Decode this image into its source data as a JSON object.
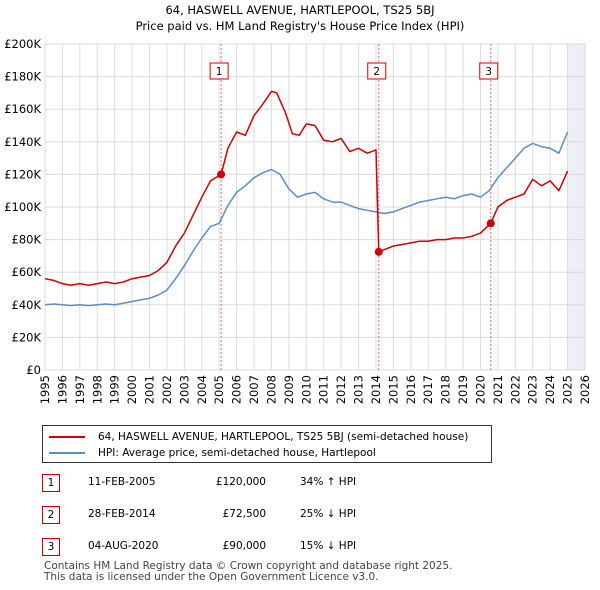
{
  "chart_data": {
    "type": "line",
    "title": "64, HASWELL AVENUE, HARTLEPOOL, TS25 5BJ",
    "subtitle": "Price paid vs. HM Land Registry's House Price Index (HPI)",
    "xlabel": "",
    "ylabel": "",
    "xlim": [
      1995,
      2026
    ],
    "ylim": [
      0,
      200000
    ],
    "x_ticks": [
      1995,
      1996,
      1997,
      1998,
      1999,
      2000,
      2001,
      2002,
      2003,
      2004,
      2005,
      2006,
      2007,
      2008,
      2009,
      2010,
      2011,
      2012,
      2013,
      2014,
      2015,
      2016,
      2017,
      2018,
      2019,
      2020,
      2021,
      2022,
      2023,
      2024,
      2025,
      2026
    ],
    "x_tick_labels": [
      "1995",
      "1996",
      "1997",
      "1998",
      "1999",
      "2000",
      "2001",
      "2002",
      "2003",
      "2004",
      "2005",
      "2006",
      "2007",
      "2008",
      "2009",
      "2010",
      "2011",
      "2012",
      "2013",
      "2014",
      "2015",
      "2016",
      "2017",
      "2018",
      "2019",
      "2020",
      "2021",
      "2022",
      "2023",
      "2024",
      "2025",
      "2026"
    ],
    "y_ticks": [
      0,
      20000,
      40000,
      60000,
      80000,
      100000,
      120000,
      140000,
      160000,
      180000,
      200000
    ],
    "y_tick_labels": [
      "£0",
      "£20K",
      "£40K",
      "£60K",
      "£80K",
      "£100K",
      "£120K",
      "£140K",
      "£160K",
      "£180K",
      "£200K"
    ],
    "grid": true,
    "shaded_future_from": 2025.0,
    "series": [
      {
        "name": "64, HASWELL AVENUE, HARTLEPOOL, TS25 5BJ (semi-detached house)",
        "color": "#cc0000",
        "x": [
          1995.0,
          1995.5,
          1996.0,
          1996.5,
          1997.0,
          1997.5,
          1998.0,
          1998.5,
          1999.0,
          1999.5,
          2000.0,
          2000.5,
          2001.0,
          2001.5,
          2002.0,
          2002.5,
          2003.0,
          2003.5,
          2004.0,
          2004.5,
          2005.11,
          2005.5,
          2006.0,
          2006.5,
          2007.0,
          2007.5,
          2008.0,
          2008.3,
          2008.8,
          2009.2,
          2009.6,
          2010.0,
          2010.5,
          2011.0,
          2011.5,
          2012.0,
          2012.5,
          2013.0,
          2013.5,
          2014.0,
          2014.16,
          2014.5,
          2015.0,
          2015.5,
          2016.0,
          2016.5,
          2017.0,
          2017.5,
          2018.0,
          2018.5,
          2019.0,
          2019.5,
          2020.0,
          2020.59,
          2021.0,
          2021.5,
          2022.0,
          2022.5,
          2023.0,
          2023.5,
          2024.0,
          2024.5,
          2025.0
        ],
        "values": [
          56000,
          55000,
          53000,
          52000,
          53000,
          52000,
          53000,
          54000,
          53000,
          54000,
          56000,
          57000,
          58000,
          61000,
          66000,
          76000,
          84000,
          95000,
          106000,
          116000,
          120000,
          136000,
          146000,
          144000,
          156000,
          163000,
          171000,
          170000,
          158000,
          145000,
          144000,
          151000,
          150000,
          141000,
          140000,
          142000,
          134000,
          136000,
          133000,
          135000,
          72500,
          74000,
          76000,
          77000,
          78000,
          79000,
          79000,
          80000,
          80000,
          81000,
          81000,
          82000,
          84000,
          90000,
          100000,
          104000,
          106000,
          108000,
          117000,
          113000,
          116000,
          110000,
          122000
        ]
      },
      {
        "name": "HPI: Average price, semi-detached house, Hartlepool",
        "color": "#5b8ec9",
        "x": [
          1995.0,
          1995.5,
          1996.0,
          1996.5,
          1997.0,
          1997.5,
          1998.0,
          1998.5,
          1999.0,
          1999.5,
          2000.0,
          2000.5,
          2001.0,
          2001.5,
          2002.0,
          2002.5,
          2003.0,
          2003.5,
          2004.0,
          2004.5,
          2005.0,
          2005.5,
          2006.0,
          2006.5,
          2007.0,
          2007.5,
          2008.0,
          2008.5,
          2009.0,
          2009.5,
          2010.0,
          2010.5,
          2011.0,
          2011.5,
          2012.0,
          2012.5,
          2013.0,
          2013.5,
          2014.0,
          2014.5,
          2015.0,
          2015.5,
          2016.0,
          2016.5,
          2017.0,
          2017.5,
          2018.0,
          2018.5,
          2019.0,
          2019.5,
          2020.0,
          2020.5,
          2021.0,
          2021.5,
          2022.0,
          2022.5,
          2023.0,
          2023.5,
          2024.0,
          2024.5,
          2025.0
        ],
        "values": [
          40000,
          40500,
          40000,
          39500,
          40000,
          39500,
          40000,
          40500,
          40000,
          41000,
          42000,
          43000,
          44000,
          46000,
          49000,
          56000,
          64000,
          73000,
          81000,
          88000,
          90000,
          101000,
          109000,
          113000,
          118000,
          121000,
          123000,
          120000,
          111000,
          106000,
          108000,
          109000,
          105000,
          103000,
          103000,
          101000,
          99000,
          98000,
          97000,
          96000,
          97000,
          99000,
          101000,
          103000,
          104000,
          105000,
          106000,
          105000,
          107000,
          108000,
          106000,
          110000,
          118000,
          124000,
          130000,
          136000,
          139000,
          137000,
          136000,
          133000,
          146000
        ]
      }
    ],
    "sale_markers": [
      {
        "label": "1",
        "x": 2005.11,
        "y": 120000
      },
      {
        "label": "2",
        "x": 2014.16,
        "y": 72500
      },
      {
        "label": "3",
        "x": 2020.59,
        "y": 90000
      }
    ]
  },
  "legend": {
    "items": [
      {
        "label": "64, HASWELL AVENUE, HARTLEPOOL, TS25 5BJ (semi-detached house)",
        "color": "#cc0000"
      },
      {
        "label": "HPI: Average price, semi-detached house, Hartlepool",
        "color": "#5b8ec9"
      }
    ]
  },
  "sales": [
    {
      "num": "1",
      "date": "11-FEB-2005",
      "price": "£120,000",
      "hpi": "34% ↑ HPI"
    },
    {
      "num": "2",
      "date": "28-FEB-2014",
      "price": "£72,500",
      "hpi": "25% ↓ HPI"
    },
    {
      "num": "3",
      "date": "04-AUG-2020",
      "price": "£90,000",
      "hpi": "15% ↓ HPI"
    }
  ],
  "footer": {
    "line1": "Contains HM Land Registry data © Crown copyright and database right 2025.",
    "line2": "This data is licensed under the Open Government Licence v3.0."
  }
}
